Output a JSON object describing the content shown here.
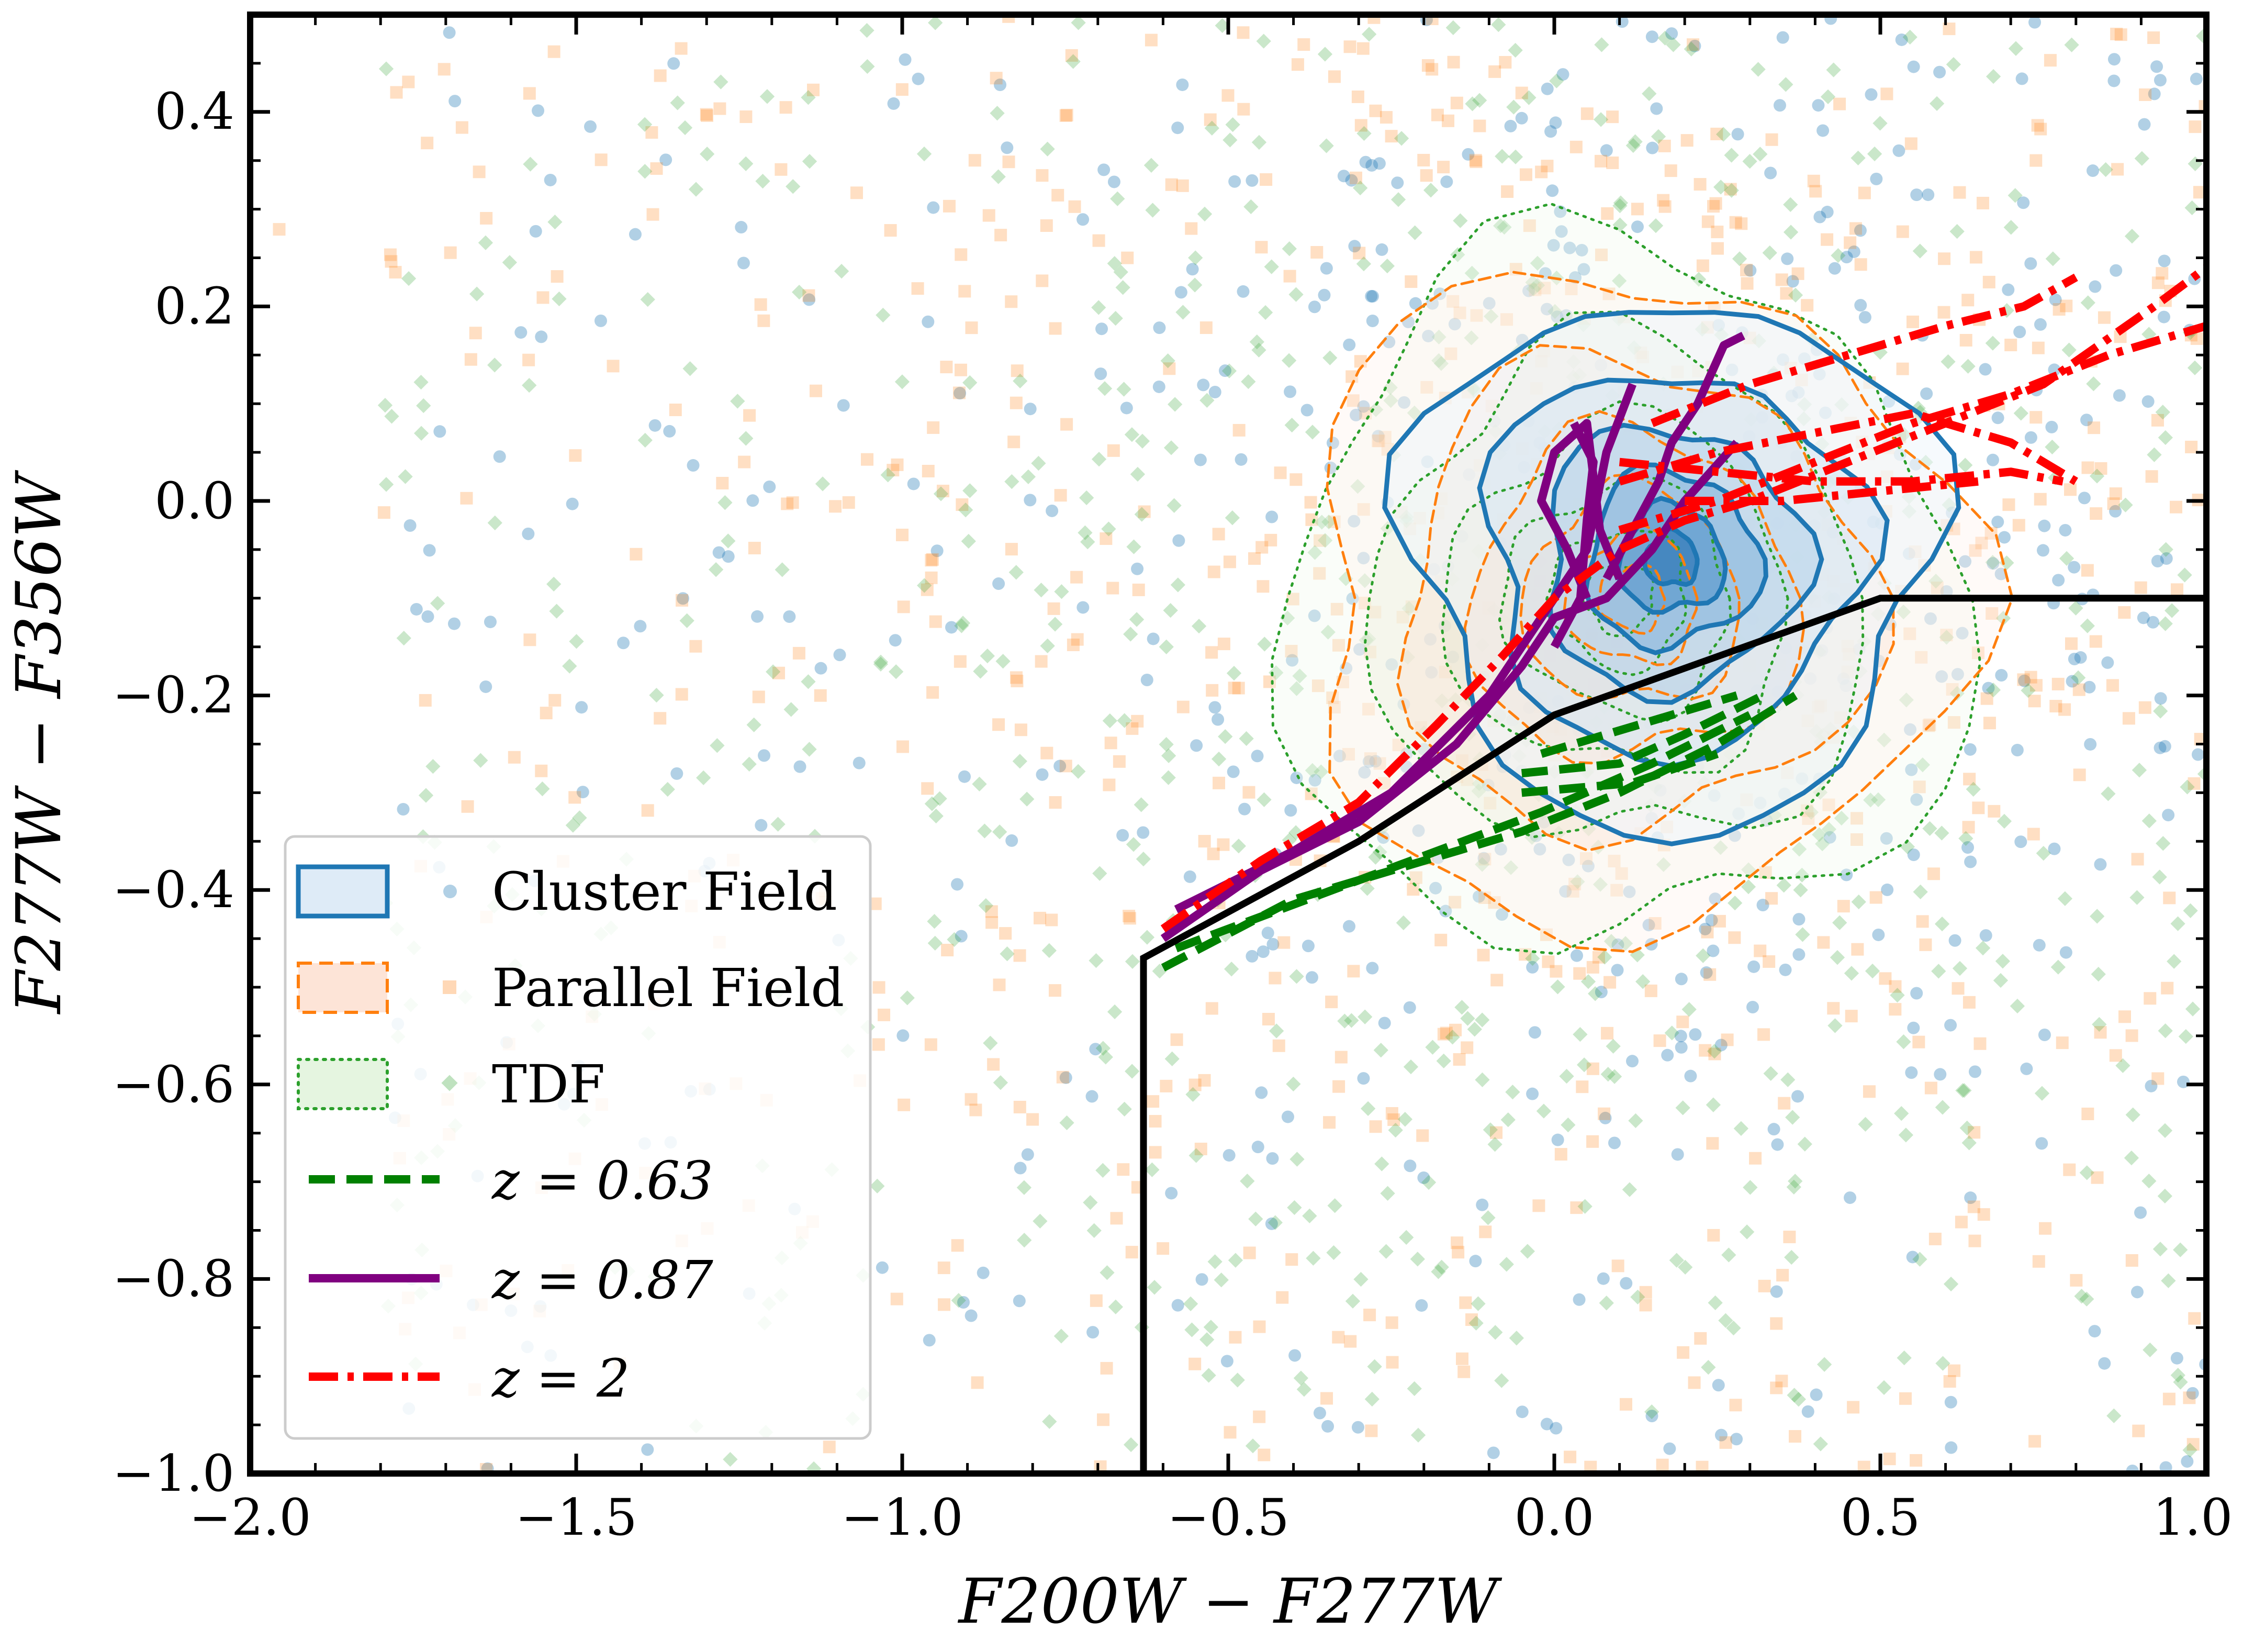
{
  "chart_data": {
    "type": "scatter",
    "xlabel": "F200W − F277W",
    "ylabel": "F277W − F356W",
    "xlim": [
      -2.0,
      1.0
    ],
    "ylim": [
      -1.0,
      0.5
    ],
    "xticks": [
      -2.0,
      -1.5,
      -1.0,
      -0.5,
      0.0,
      0.5,
      1.0
    ],
    "xtick_labels": [
      "−2.0",
      "−1.5",
      "−1.0",
      "−0.5",
      "0.0",
      "0.5",
      "1.0"
    ],
    "yticks": [
      -1.0,
      -0.8,
      -0.6,
      -0.4,
      -0.2,
      0.0,
      0.2,
      0.4
    ],
    "ytick_labels": [
      "−1.0",
      "−0.8",
      "−0.6",
      "−0.4",
      "−0.2",
      "0.0",
      "0.2",
      "0.4"
    ],
    "legend_position": "lower-left",
    "legend": [
      {
        "label": "Cluster Field",
        "kind": "filled-solid",
        "color": "#1f77b4"
      },
      {
        "label": "Parallel Field",
        "kind": "filled-dashed",
        "color": "#ff7f0e"
      },
      {
        "label": "TDF",
        "kind": "filled-dotted",
        "color": "#2ca02c"
      },
      {
        "label": "z = 0.63",
        "kind": "line-dashed",
        "color": "#008000"
      },
      {
        "label": "z = 0.87",
        "kind": "line-solid",
        "color": "#800080"
      },
      {
        "label": "z = 2",
        "kind": "line-dashdot",
        "color": "#ff0000"
      }
    ],
    "selection_boundary": {
      "color": "#000000",
      "points": [
        [
          -0.63,
          -1.0
        ],
        [
          -0.63,
          -0.47
        ],
        [
          -0.3,
          -0.35
        ],
        [
          0.0,
          -0.22
        ],
        [
          0.5,
          -0.1
        ],
        [
          1.0,
          -0.1
        ]
      ]
    },
    "field_distributions": [
      {
        "name": "Cluster Field",
        "color": "#1f77b4",
        "peak": [
          0.18,
          -0.06
        ],
        "spread": [
          0.38,
          0.26
        ]
      },
      {
        "name": "Parallel Field",
        "color": "#ff7f0e",
        "peak": [
          0.12,
          -0.1
        ],
        "spread": [
          0.48,
          0.32
        ]
      },
      {
        "name": "TDF",
        "color": "#2ca02c",
        "peak": [
          0.1,
          -0.1
        ],
        "spread": [
          0.5,
          0.34
        ]
      }
    ],
    "tracks": [
      {
        "name": "z = 0.63",
        "color": "#008000",
        "style": "dashed",
        "segments": [
          [
            [
              -0.6,
              -0.48
            ],
            [
              -0.4,
              -0.41
            ],
            [
              -0.2,
              -0.37
            ],
            [
              -0.05,
              -0.34
            ],
            [
              0.1,
              -0.3
            ],
            [
              0.25,
              -0.25
            ],
            [
              0.37,
              -0.2
            ]
          ],
          [
            [
              -0.58,
              -0.46
            ],
            [
              -0.3,
              -0.39
            ],
            [
              -0.02,
              -0.32
            ],
            [
              0.15,
              -0.27
            ],
            [
              0.3,
              -0.22
            ]
          ],
          [
            [
              -0.05,
              -0.28
            ],
            [
              0.1,
              -0.27
            ],
            [
              0.2,
              -0.24
            ],
            [
              0.32,
              -0.2
            ]
          ],
          [
            [
              -0.02,
              -0.26
            ],
            [
              0.08,
              -0.24
            ],
            [
              0.18,
              -0.22
            ],
            [
              0.28,
              -0.2
            ]
          ],
          [
            [
              -0.05,
              -0.3
            ],
            [
              0.12,
              -0.29
            ],
            [
              0.25,
              -0.26
            ]
          ]
        ]
      },
      {
        "name": "z = 0.87",
        "color": "#800080",
        "style": "solid",
        "segments": [
          [
            [
              -0.6,
              -0.45
            ],
            [
              -0.45,
              -0.38
            ],
            [
              -0.3,
              -0.33
            ],
            [
              -0.15,
              -0.25
            ],
            [
              -0.05,
              -0.17
            ],
            [
              0.0,
              -0.12
            ],
            [
              0.08,
              -0.1
            ],
            [
              0.15,
              -0.05
            ],
            [
              0.2,
              0.0
            ],
            [
              0.28,
              0.06
            ]
          ],
          [
            [
              -0.58,
              -0.42
            ],
            [
              -0.4,
              -0.36
            ],
            [
              -0.25,
              -0.3
            ],
            [
              -0.1,
              -0.2
            ],
            [
              -0.02,
              -0.12
            ],
            [
              0.05,
              -0.05
            ],
            [
              0.08,
              0.05
            ],
            [
              0.12,
              0.12
            ]
          ],
          [
            [
              0.05,
              -0.1
            ],
            [
              0.02,
              -0.05
            ],
            [
              -0.02,
              0.0
            ],
            [
              0.0,
              0.05
            ],
            [
              0.05,
              0.08
            ],
            [
              0.07,
              -0.03
            ],
            [
              0.1,
              -0.08
            ]
          ],
          [
            [
              0.08,
              -0.08
            ],
            [
              0.12,
              -0.03
            ],
            [
              0.16,
              0.02
            ],
            [
              0.18,
              0.06
            ],
            [
              0.22,
              0.1
            ],
            [
              0.26,
              0.16
            ],
            [
              0.29,
              0.17
            ]
          ],
          [
            [
              0.0,
              -0.15
            ],
            [
              0.04,
              -0.1
            ],
            [
              0.05,
              -0.02
            ],
            [
              0.06,
              0.04
            ],
            [
              0.03,
              0.08
            ]
          ]
        ]
      },
      {
        "name": "z = 2",
        "color": "#ff0000",
        "style": "dashdot",
        "segments": [
          [
            [
              -0.6,
              -0.44
            ],
            [
              -0.45,
              -0.37
            ],
            [
              -0.3,
              -0.31
            ],
            [
              -0.18,
              -0.23
            ],
            [
              -0.08,
              -0.16
            ],
            [
              0.0,
              -0.1
            ],
            [
              0.1,
              -0.05
            ],
            [
              0.2,
              -0.02
            ],
            [
              0.3,
              0.0
            ],
            [
              0.45,
              0.04
            ],
            [
              0.6,
              0.08
            ],
            [
              0.75,
              0.12
            ],
            [
              0.92,
              0.2
            ],
            [
              1.0,
              0.24
            ]
          ],
          [
            [
              0.1,
              -0.03
            ],
            [
              0.25,
              0.0
            ],
            [
              0.4,
              0.04
            ],
            [
              0.55,
              0.08
            ],
            [
              0.7,
              0.11
            ],
            [
              0.85,
              0.15
            ],
            [
              1.0,
              0.18
            ]
          ],
          [
            [
              0.15,
              0.08
            ],
            [
              0.3,
              0.12
            ],
            [
              0.45,
              0.15
            ],
            [
              0.6,
              0.18
            ],
            [
              0.72,
              0.2
            ],
            [
              0.8,
              0.23
            ]
          ],
          [
            [
              0.1,
              0.02
            ],
            [
              0.25,
              0.05
            ],
            [
              0.4,
              0.07
            ],
            [
              0.55,
              0.09
            ],
            [
              0.7,
              0.06
            ],
            [
              0.8,
              0.02
            ]
          ],
          [
            [
              0.1,
              0.04
            ],
            [
              0.25,
              0.03
            ],
            [
              0.4,
              0.02
            ],
            [
              0.55,
              0.02
            ],
            [
              0.7,
              0.03
            ],
            [
              0.78,
              0.02
            ]
          ],
          [
            [
              0.2,
              0.0
            ],
            [
              0.35,
              0.0
            ],
            [
              0.5,
              0.01
            ],
            [
              0.65,
              0.02
            ]
          ]
        ]
      }
    ]
  }
}
